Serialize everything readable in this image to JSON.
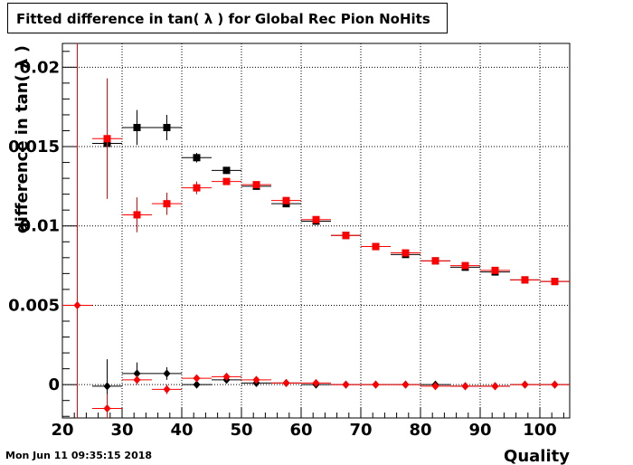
{
  "chart_data": {
    "type": "scatter",
    "title": "Fitted difference in tan( λ ) for Global Rec Pion NoHits",
    "xlabel": "Quality",
    "ylabel": "difference in tan( λ )",
    "xlim": [
      20,
      105
    ],
    "ylim": [
      -0.0021,
      0.0215
    ],
    "grid": true,
    "x_ticks": [
      "20",
      "30",
      "40",
      "50",
      "60",
      "70",
      "80",
      "90",
      "100"
    ],
    "y_ticks": [
      "0",
      "0.005",
      "0.01",
      "0.015",
      "0.02"
    ],
    "series": [
      {
        "marker": "square",
        "color": "#000000",
        "points": [
          {
            "x": 27.5,
            "y": 0.0152,
            "ey": 0.0
          },
          {
            "x": 32.5,
            "y": 0.0162,
            "ey": 0.0011
          },
          {
            "x": 37.5,
            "y": 0.0162,
            "ey": 0.0008
          },
          {
            "x": 42.5,
            "y": 0.0143,
            "ey": 0.0003
          },
          {
            "x": 47.5,
            "y": 0.0135,
            "ey": 0.0002
          },
          {
            "x": 52.5,
            "y": 0.0125,
            "ey": 0.0001
          },
          {
            "x": 57.5,
            "y": 0.0114,
            "ey": 0.0001
          },
          {
            "x": 62.5,
            "y": 0.0103,
            "ey": 0.0001
          },
          {
            "x": 67.5,
            "y": 0.0094,
            "ey": 0.0
          },
          {
            "x": 72.5,
            "y": 0.0087,
            "ey": 0.0
          },
          {
            "x": 77.5,
            "y": 0.0082,
            "ey": 0.0
          },
          {
            "x": 82.5,
            "y": 0.0078,
            "ey": 0.0
          },
          {
            "x": 87.5,
            "y": 0.0074,
            "ey": 0.0
          },
          {
            "x": 92.5,
            "y": 0.0071,
            "ey": 0.0
          },
          {
            "x": 97.5,
            "y": 0.0066,
            "ey": 0.0
          },
          {
            "x": 102.5,
            "y": 0.0065,
            "ey": 0.0
          }
        ]
      },
      {
        "marker": "square",
        "color": "#ff0000",
        "points": [
          {
            "x": 27.5,
            "y": 0.0155,
            "ey": 0.0038
          },
          {
            "x": 32.5,
            "y": 0.0107,
            "ey": 0.0011
          },
          {
            "x": 37.5,
            "y": 0.0114,
            "ey": 0.0007
          },
          {
            "x": 42.5,
            "y": 0.0124,
            "ey": 0.0004
          },
          {
            "x": 47.5,
            "y": 0.0128,
            "ey": 0.0002
          },
          {
            "x": 52.5,
            "y": 0.0126,
            "ey": 0.0001
          },
          {
            "x": 57.5,
            "y": 0.0116,
            "ey": 0.0001
          },
          {
            "x": 62.5,
            "y": 0.0104,
            "ey": 0.0001
          },
          {
            "x": 67.5,
            "y": 0.0094,
            "ey": 0.0
          },
          {
            "x": 72.5,
            "y": 0.0087,
            "ey": 0.0
          },
          {
            "x": 77.5,
            "y": 0.0083,
            "ey": 0.0
          },
          {
            "x": 82.5,
            "y": 0.0078,
            "ey": 0.0
          },
          {
            "x": 87.5,
            "y": 0.0075,
            "ey": 0.0
          },
          {
            "x": 92.5,
            "y": 0.0072,
            "ey": 0.0
          },
          {
            "x": 97.5,
            "y": 0.0066,
            "ey": 0.0
          },
          {
            "x": 102.5,
            "y": 0.0065,
            "ey": 0.0
          }
        ]
      },
      {
        "marker": "diamond",
        "color": "#000000",
        "points": [
          {
            "x": 27.5,
            "y": -0.0001,
            "ey": 0.0017
          },
          {
            "x": 32.5,
            "y": 0.0007,
            "ey": 0.0007
          },
          {
            "x": 37.5,
            "y": 0.0007,
            "ey": 0.0004
          },
          {
            "x": 42.5,
            "y": 0.0,
            "ey": 0.0001
          },
          {
            "x": 47.5,
            "y": 0.0003,
            "ey": 0.0
          },
          {
            "x": 52.5,
            "y": 0.0001,
            "ey": 0.0
          },
          {
            "x": 57.5,
            "y": 0.0001,
            "ey": 0.0
          },
          {
            "x": 62.5,
            "y": 0.0,
            "ey": 0.0
          },
          {
            "x": 67.5,
            "y": 0.0,
            "ey": 0.0
          },
          {
            "x": 72.5,
            "y": 0.0,
            "ey": 0.0
          },
          {
            "x": 77.5,
            "y": 0.0,
            "ey": 0.0
          },
          {
            "x": 82.5,
            "y": 0.0,
            "ey": 0.0
          },
          {
            "x": 87.5,
            "y": -0.0001,
            "ey": 0.0
          },
          {
            "x": 92.5,
            "y": -0.0001,
            "ey": 0.0
          },
          {
            "x": 97.5,
            "y": 0.0,
            "ey": 0.0
          },
          {
            "x": 102.5,
            "y": 0.0,
            "ey": 0.0
          }
        ]
      },
      {
        "marker": "diamond",
        "color": "#ff0000",
        "points": [
          {
            "x": 22.5,
            "y": 0.005,
            "ey": 0.0215
          },
          {
            "x": 27.5,
            "y": -0.0015,
            "ey": 0.0009
          },
          {
            "x": 32.5,
            "y": 0.0003,
            "ey": 0.0003
          },
          {
            "x": 37.5,
            "y": -0.0003,
            "ey": 0.0003
          },
          {
            "x": 42.5,
            "y": 0.0004,
            "ey": 0.0001
          },
          {
            "x": 47.5,
            "y": 0.0005,
            "ey": 0.0001
          },
          {
            "x": 52.5,
            "y": 0.0003,
            "ey": 0.0
          },
          {
            "x": 57.5,
            "y": 0.0001,
            "ey": 0.0
          },
          {
            "x": 62.5,
            "y": 0.0001,
            "ey": 0.0
          },
          {
            "x": 67.5,
            "y": 0.0,
            "ey": 0.0
          },
          {
            "x": 72.5,
            "y": 0.0,
            "ey": 0.0
          },
          {
            "x": 77.5,
            "y": 0.0,
            "ey": 0.0
          },
          {
            "x": 82.5,
            "y": -0.0001,
            "ey": 0.0
          },
          {
            "x": 87.5,
            "y": -0.0001,
            "ey": 0.0
          },
          {
            "x": 92.5,
            "y": -0.0001,
            "ey": 0.0
          },
          {
            "x": 97.5,
            "y": 0.0,
            "ey": 0.0
          },
          {
            "x": 102.5,
            "y": 0.0,
            "ey": 0.0
          }
        ]
      }
    ],
    "bin_width": 5
  },
  "footer": {
    "timestamp": "Mon Jun 11 09:35:15 2018"
  }
}
